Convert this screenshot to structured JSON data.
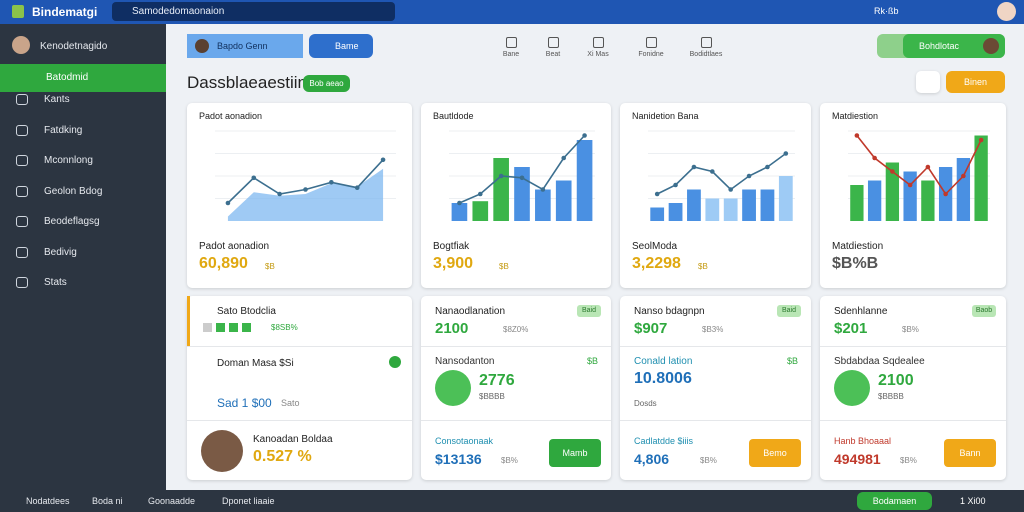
{
  "topbar": {
    "brand": "Bindematgi",
    "search": "Samodedomaonaion",
    "user": "Rk·ßb"
  },
  "sidebar": {
    "profile": "Kenodetnagido",
    "items": [
      "Batodmid",
      "Kants",
      "Fatdking",
      "Mconnlong",
      "Geolon Bdog",
      "Beodeflagsg",
      "Bedivig",
      "Stats"
    ]
  },
  "toolbar": {
    "left": [
      "Bapdo Genn",
      "Bame"
    ],
    "center": [
      "Bane",
      "Beat",
      "Xi Mas",
      "Fonidne",
      "Bodidtlaes"
    ],
    "right": "Bohdlotac"
  },
  "title": "Dassblaeaestiin",
  "badge": "Bob aeao",
  "action": "Binen",
  "charts": [
    {
      "title": "Padot aonadion",
      "label": "Padot aonadion",
      "value": "60,890",
      "unit": "$B",
      "ylim": [
        0,
        100
      ],
      "line": [
        20,
        48,
        30,
        35,
        43,
        37,
        68
      ],
      "area": [
        5,
        32,
        28,
        30,
        42,
        38,
        58
      ],
      "color": "#3c6f8f",
      "area_color": "#7fb8f0"
    },
    {
      "title": "Bautldode",
      "label": "Bogtfiak",
      "value": "3,900",
      "unit": "$B",
      "ylim": [
        0,
        100
      ],
      "bars": [
        20,
        22,
        70,
        60,
        35,
        45,
        90
      ],
      "bar_colors": [
        "#4a90e2",
        "#3bb54a",
        "#3bb54a",
        "#4a90e2",
        "#4a90e2",
        "#4a90e2",
        "#4a90e2"
      ],
      "line": [
        20,
        30,
        50,
        48,
        35,
        70,
        95
      ],
      "color": "#3c6f8f"
    },
    {
      "title": "Nanidetion Bana",
      "label": "SeolModa",
      "value": "3,2298",
      "unit": "$B",
      "ylim": [
        0,
        100
      ],
      "bars": [
        15,
        20,
        35,
        25,
        25,
        35,
        35,
        50
      ],
      "bar_colors": [
        "#4a90e2",
        "#4a90e2",
        "#4a90e2",
        "#9ecbf5",
        "#9ecbf5",
        "#4a90e2",
        "#4a90e2",
        "#9ecbf5"
      ],
      "line": [
        30,
        40,
        60,
        55,
        35,
        50,
        60,
        75
      ],
      "color": "#3c6f8f"
    },
    {
      "title": "Matdiestion",
      "label": "Matdiestion",
      "value": "$B%B",
      "unit": "",
      "ylim": [
        0,
        100
      ],
      "bars": [
        40,
        45,
        65,
        55,
        45,
        60,
        70,
        95
      ],
      "bar_colors": [
        "#3bb54a",
        "#4a90e2",
        "#3bb54a",
        "#4a90e2",
        "#3bb54a",
        "#4a90e2",
        "#4a90e2",
        "#3bb54a"
      ],
      "line": [
        95,
        70,
        55,
        40,
        60,
        30,
        50,
        90
      ],
      "color": "#c0392b"
    }
  ],
  "cards": [
    {
      "title": "Sato Btodclia",
      "stat": "$8SB%",
      "rows": [
        "Doman Masa $Si",
        "Sad 1 $00",
        "Sato"
      ],
      "person": "Kanoadan Boldaa",
      "value": "0.527 %"
    },
    {
      "title": "Nanaodlanation",
      "badge": "Baid",
      "stat": "2100",
      "sub": "$8Z0%",
      "mid": "Nansodanton",
      "mid_badge": "$B",
      "big": "2776",
      "big_sub": "$BBBB",
      "foot": "Consotaonaak",
      "foot_value": "$13136",
      "foot_sub": "$B%",
      "button": "Mamb"
    },
    {
      "title": "Nanso bdagnpn",
      "badge": "Baid",
      "stat": "$907",
      "sub": "$B3%",
      "mid": "Conald lation",
      "mid_badge": "$B",
      "big": "10.8006",
      "big_sub": "Dosds",
      "foot": "Cadlatdde $iiis",
      "foot_value": "4,806",
      "foot_sub": "$B%",
      "button": "Bemo"
    },
    {
      "title": "Sdenhlanne",
      "badge": "Baob",
      "stat": "$201",
      "sub": "$B%",
      "mid": "Sbdabdaa Sqdealee",
      "mid_badge": "",
      "big": "2100",
      "big_sub": "$BBBB",
      "foot": "Hanb Bhoaaal",
      "foot_value": "494981",
      "foot_sub": "$B%",
      "button": "Bann"
    }
  ],
  "footer": {
    "items": [
      "Nodatdees",
      "Boda ni",
      "Goonaadde",
      "Dponet liaaie"
    ],
    "button": "Bodamaen",
    "count": "1 Xi00"
  }
}
